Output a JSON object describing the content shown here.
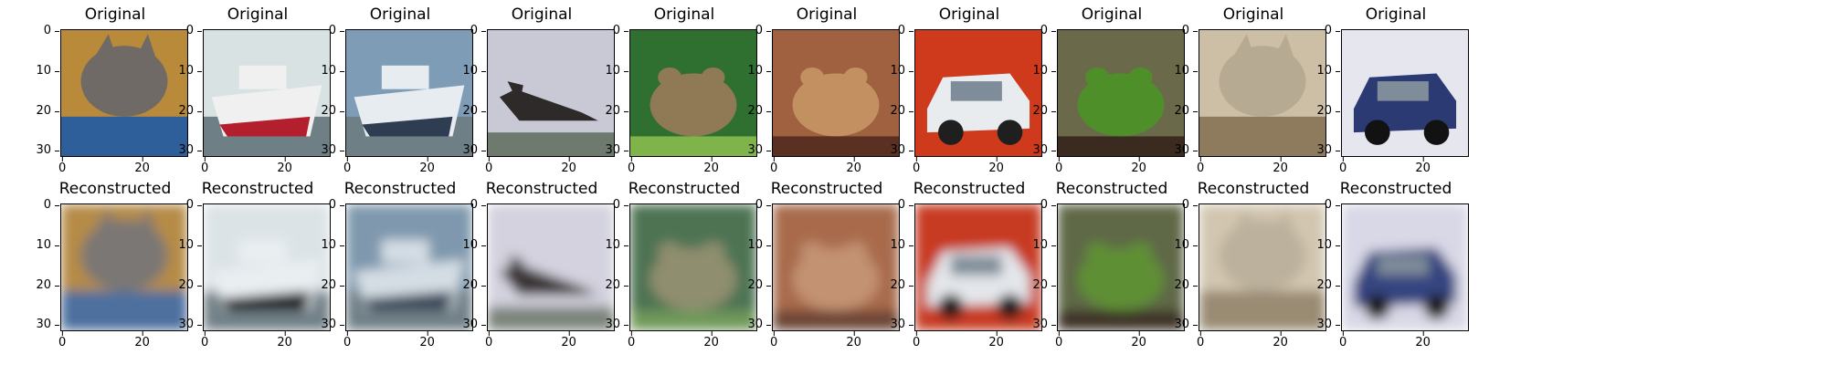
{
  "rows": [
    {
      "title": "Original",
      "panels": [
        {
          "subject": "cat",
          "colors": {
            "bg": "#b88a3a",
            "main": "#6f6a66",
            "accent": "#2f5f9a"
          }
        },
        {
          "subject": "ship",
          "colors": {
            "bg": "#d9e2e2",
            "main": "#f0f0f0",
            "accent": "#b31f2c"
          }
        },
        {
          "subject": "ship",
          "colors": {
            "bg": "#7f9cb7",
            "main": "#e6ecf0",
            "accent": "#2f3d52"
          }
        },
        {
          "subject": "airplane",
          "colors": {
            "bg": "#c9c9d6",
            "main": "#2e2a2a",
            "accent": "#6e7a6e"
          }
        },
        {
          "subject": "frog",
          "colors": {
            "bg": "#2f6f2f",
            "main": "#8f7a55",
            "accent": "#7fb44a"
          }
        },
        {
          "subject": "frog",
          "colors": {
            "bg": "#9f6140",
            "main": "#c39161",
            "accent": "#5a3022"
          }
        },
        {
          "subject": "automobile",
          "colors": {
            "bg": "#cf3a1c",
            "main": "#e8ecef",
            "accent": "#1f1f1f"
          }
        },
        {
          "subject": "frog",
          "colors": {
            "bg": "#6a6a4a",
            "main": "#4f8f2a",
            "accent": "#3a2a1f"
          }
        },
        {
          "subject": "cat",
          "colors": {
            "bg": "#cdbfa6",
            "main": "#b7aa92",
            "accent": "#8e7b5e"
          }
        },
        {
          "subject": "automobile",
          "colors": {
            "bg": "#e6e6ef",
            "main": "#2c3a73",
            "accent": "#121212"
          }
        }
      ]
    },
    {
      "title": "Reconstructed",
      "panels": [
        {
          "subject": "cat",
          "colors": {
            "bg": "#b58b47",
            "main": "#7a7774",
            "accent": "#4d6f9e"
          }
        },
        {
          "subject": "ship",
          "colors": {
            "bg": "#dbe3e6",
            "main": "#e9eef1",
            "accent": "#1c1e22"
          }
        },
        {
          "subject": "ship",
          "colors": {
            "bg": "#7f98ad",
            "main": "#d4dde4",
            "accent": "#3a4a5a"
          }
        },
        {
          "subject": "airplane",
          "colors": {
            "bg": "#d3d2de",
            "main": "#3a3434",
            "accent": "#7c847c"
          }
        },
        {
          "subject": "frog",
          "colors": {
            "bg": "#4e7352",
            "main": "#8f8e6e",
            "accent": "#6f995a"
          }
        },
        {
          "subject": "frog",
          "colors": {
            "bg": "#a86a4c",
            "main": "#c29272",
            "accent": "#6d4536"
          }
        },
        {
          "subject": "automobile",
          "colors": {
            "bg": "#c73a24",
            "main": "#e3e6ea",
            "accent": "#1e1e1e"
          }
        },
        {
          "subject": "frog",
          "colors": {
            "bg": "#5f6847",
            "main": "#5f8f35",
            "accent": "#3d3328"
          }
        },
        {
          "subject": "cat",
          "colors": {
            "bg": "#d2c6b0",
            "main": "#bcb19c",
            "accent": "#9a8b73"
          }
        },
        {
          "subject": "automobile",
          "colors": {
            "bg": "#d8d8e6",
            "main": "#364480",
            "accent": "#1a1a1a"
          }
        }
      ]
    }
  ],
  "axis": {
    "yticks": [
      "0",
      "10",
      "20",
      "30"
    ],
    "xticks": [
      "0",
      "20"
    ]
  }
}
